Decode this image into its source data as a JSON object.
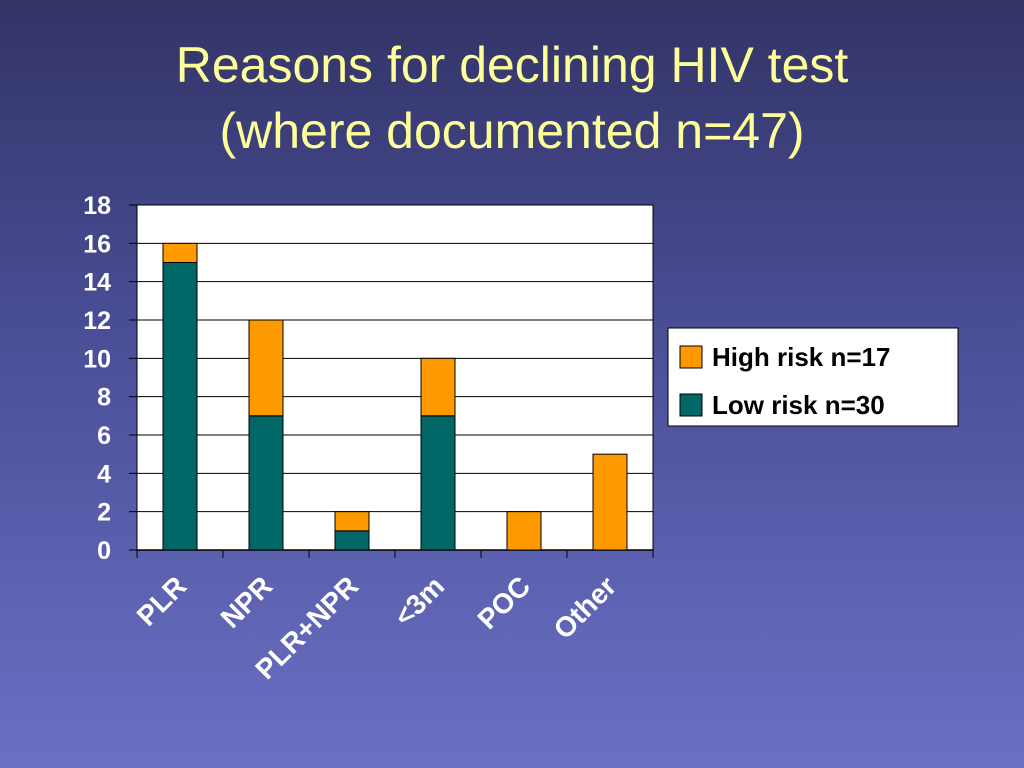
{
  "slide": {
    "title_line1": "Reasons for declining HIV test",
    "title_line2": "(where documented n=47)"
  },
  "chart_data": {
    "type": "bar",
    "stacked": true,
    "categories": [
      "PLR",
      "NPR",
      "PLR+NPR",
      "<3m",
      "POC",
      "Other"
    ],
    "series": [
      {
        "name": "Low risk n=30",
        "color": "#006666",
        "values": [
          15,
          7,
          1,
          7,
          0,
          0
        ]
      },
      {
        "name": "High risk n=17",
        "color": "#ff9900",
        "values": [
          1,
          5,
          1,
          3,
          2,
          5
        ]
      }
    ],
    "ylim": [
      0,
      18
    ],
    "yticks": [
      0,
      2,
      4,
      6,
      8,
      10,
      12,
      14,
      16,
      18
    ],
    "grid": true,
    "legend": {
      "position": "right",
      "order": [
        "High risk n=17",
        "Low risk n=30"
      ]
    },
    "colors": {
      "plot_background": "#ffffff",
      "gridline": "#000000",
      "tick_text": "#ffffff"
    }
  }
}
